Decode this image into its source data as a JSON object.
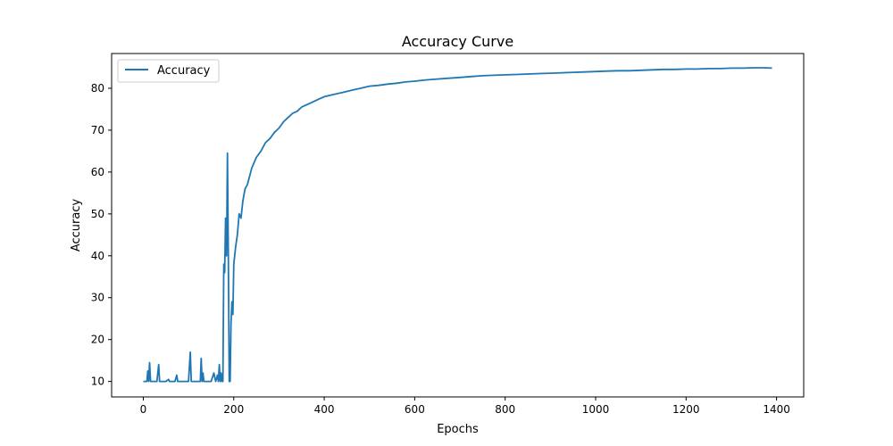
{
  "chart_data": {
    "type": "line",
    "title": "Accuracy Curve",
    "xlabel": "Epochs",
    "ylabel": "Accuracy",
    "xlim": [
      -70,
      1460
    ],
    "ylim": [
      6.3,
      88.3
    ],
    "xticks": [
      0,
      200,
      400,
      600,
      800,
      1000,
      1200,
      1400
    ],
    "yticks": [
      10,
      20,
      30,
      40,
      50,
      60,
      70,
      80
    ],
    "grid": false,
    "legend": {
      "position": "top-left",
      "entries": [
        "Accuracy"
      ]
    },
    "series": [
      {
        "name": "Accuracy",
        "color": "#1f77b4",
        "x": [
          0,
          8,
          10,
          12,
          14,
          16,
          18,
          30,
          34,
          36,
          38,
          50,
          56,
          58,
          60,
          70,
          74,
          76,
          78,
          90,
          100,
          104,
          106,
          108,
          118,
          126,
          128,
          130,
          132,
          134,
          136,
          138,
          140,
          150,
          156,
          160,
          164,
          166,
          168,
          170,
          172,
          174,
          176,
          178,
          180,
          182,
          184,
          186,
          188,
          190,
          192,
          194,
          196,
          198,
          200,
          204,
          208,
          212,
          216,
          220,
          225,
          230,
          235,
          240,
          250,
          260,
          270,
          280,
          290,
          300,
          310,
          320,
          330,
          340,
          350,
          360,
          370,
          380,
          390,
          400,
          420,
          440,
          460,
          480,
          500,
          520,
          540,
          560,
          580,
          600,
          625,
          650,
          675,
          700,
          725,
          750,
          775,
          800,
          825,
          850,
          875,
          900,
          925,
          950,
          975,
          1000,
          1025,
          1050,
          1075,
          1100,
          1125,
          1150,
          1175,
          1200,
          1225,
          1250,
          1275,
          1300,
          1325,
          1350,
          1375,
          1390
        ],
        "y": [
          10,
          10,
          12.5,
          10,
          14.5,
          10,
          10,
          10,
          14,
          10,
          10,
          10,
          10.5,
          10,
          10,
          10,
          11.5,
          10,
          10,
          10,
          10,
          17,
          10,
          10,
          10,
          10,
          15.5,
          10,
          12,
          10,
          10,
          10,
          10,
          10,
          12,
          10,
          11.5,
          10,
          14,
          10,
          12,
          10,
          10,
          38,
          36,
          49,
          40,
          64.5,
          40,
          10,
          10,
          24,
          29,
          26,
          38,
          42,
          45,
          50,
          49,
          53,
          56,
          57,
          59,
          61,
          63.5,
          65,
          67,
          68,
          69.5,
          70.5,
          72,
          73,
          74,
          74.5,
          75.5,
          76,
          76.5,
          77,
          77.5,
          78,
          78.5,
          79,
          79.5,
          80,
          80.5,
          80.7,
          81,
          81.2,
          81.5,
          81.7,
          82,
          82.2,
          82.4,
          82.6,
          82.8,
          83,
          83.1,
          83.2,
          83.3,
          83.4,
          83.5,
          83.6,
          83.7,
          83.8,
          83.9,
          84,
          84.1,
          84.2,
          84.2,
          84.3,
          84.4,
          84.5,
          84.5,
          84.6,
          84.6,
          84.7,
          84.7,
          84.8,
          84.8,
          84.9,
          84.9,
          84.8
        ]
      }
    ]
  }
}
